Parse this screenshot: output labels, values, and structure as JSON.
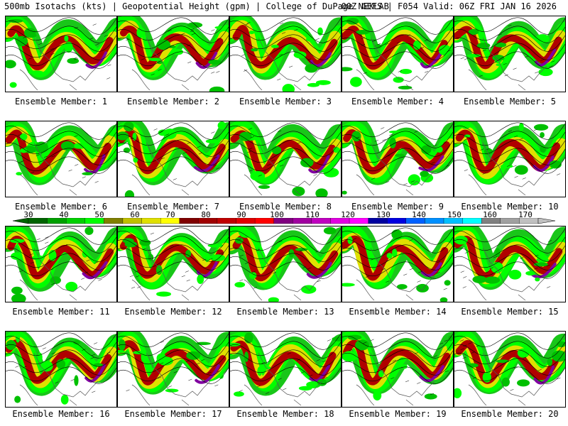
{
  "header": {
    "left": "500mb Isotachs (kts) | Geopotential Height (gpm) | College of DuPage NEXLAB",
    "right": "00Z GEFS | F054 Valid: 06Z FRI JAN 16 2026"
  },
  "members": [
    {
      "label": "Ensemble Member: 1"
    },
    {
      "label": "Ensemble Member: 2"
    },
    {
      "label": "Ensemble Member: 3"
    },
    {
      "label": "Ensemble Member: 4"
    },
    {
      "label": "Ensemble Member: 5"
    },
    {
      "label": "Ensemble Member: 6"
    },
    {
      "label": "Ensemble Member: 7"
    },
    {
      "label": "Ensemble Member: 8"
    },
    {
      "label": "Ensemble Member: 9"
    },
    {
      "label": "Ensemble Member: 10"
    },
    {
      "label": "Ensemble Member: 11"
    },
    {
      "label": "Ensemble Member: 12"
    },
    {
      "label": "Ensemble Member: 13"
    },
    {
      "label": "Ensemble Member: 14"
    },
    {
      "label": "Ensemble Member: 15"
    },
    {
      "label": "Ensemble Member: 16"
    },
    {
      "label": "Ensemble Member: 17"
    },
    {
      "label": "Ensemble Member: 18"
    },
    {
      "label": "Ensemble Member: 19"
    },
    {
      "label": "Ensemble Member: 20"
    }
  ],
  "colorbar": {
    "labels": [
      "30",
      "40",
      "50",
      "60",
      "70",
      "80",
      "90",
      "100",
      "110",
      "120",
      "130",
      "140",
      "150",
      "160",
      "170"
    ],
    "colors": [
      "#006400",
      "#00a000",
      "#00d000",
      "#00ff00",
      "#808000",
      "#c0c000",
      "#e0e000",
      "#ffff00",
      "#800000",
      "#a00000",
      "#c00000",
      "#e00000",
      "#ff0000",
      "#800080",
      "#a000a0",
      "#c000c0",
      "#e000e0",
      "#ff00ff",
      "#0000a0",
      "#0000e0",
      "#0060ff",
      "#0090ff",
      "#00c0ff",
      "#00ffff",
      "#808080",
      "#a0a0a0",
      "#c0c0c0"
    ]
  }
}
